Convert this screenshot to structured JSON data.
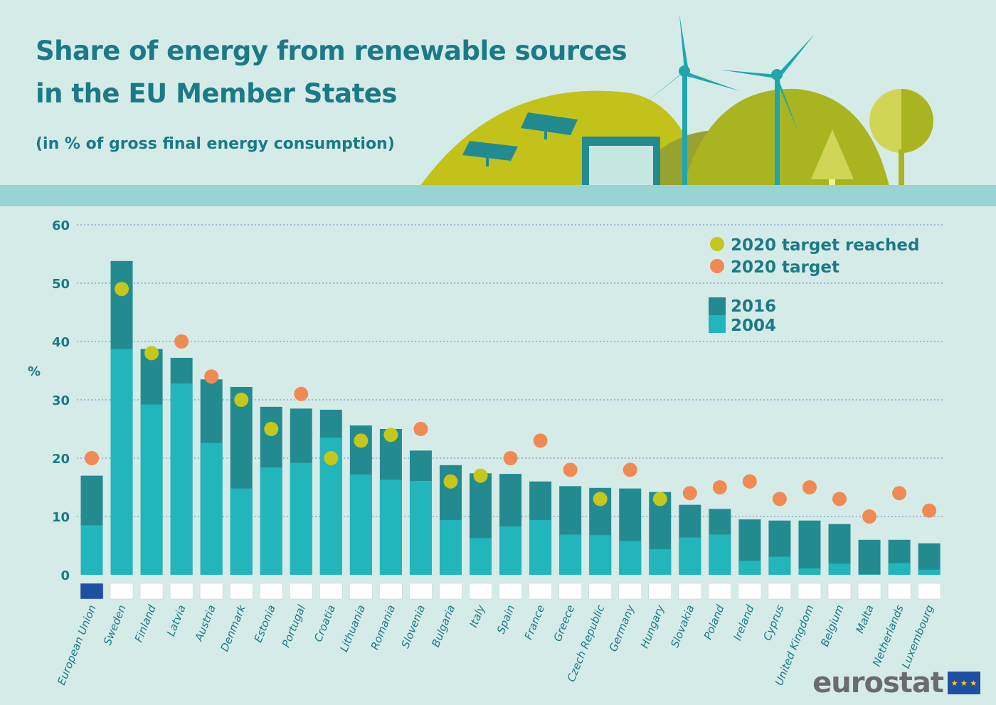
{
  "header": {
    "title_line1": "Share of energy from renewable sources",
    "title_line2": "in the EU Member States",
    "subtitle": "(in % of gross final energy consumption)"
  },
  "logo": "eurostat",
  "colors": {
    "background": "#d5ebe8",
    "bar_2016": "#238b90",
    "bar_2004": "#22b5bc",
    "target_reached": "#c5c71a",
    "target": "#f08a52",
    "text": "#1b7a85"
  },
  "chart_data": {
    "type": "bar",
    "ylabel": "%",
    "ylim": [
      0,
      60
    ],
    "yticks": [
      0,
      10,
      20,
      30,
      40,
      50,
      60
    ],
    "grid": true,
    "legend_position": "top-right",
    "legend": {
      "target_reached": "2020 target reached",
      "target": "2020 target",
      "s2016": "2016",
      "s2004": "2004"
    },
    "categories": [
      "European Union",
      "Sweden",
      "Finland",
      "Latvia",
      "Austria",
      "Denmark",
      "Estonia",
      "Portugal",
      "Croatia",
      "Lithuania",
      "Romania",
      "Slovenia",
      "Bulgaria",
      "Italy",
      "Spain",
      "France",
      "Greece",
      "Czech Republic",
      "Germany",
      "Hungary",
      "Slovakia",
      "Poland",
      "Ireland",
      "Cyprus",
      "United Kingdom",
      "Belgium",
      "Malta",
      "Netherlands",
      "Luxembourg"
    ],
    "series": [
      {
        "name": "2016",
        "values": [
          17.0,
          53.8,
          38.7,
          37.2,
          33.5,
          32.2,
          28.8,
          28.5,
          28.3,
          25.6,
          25.0,
          21.3,
          18.8,
          17.4,
          17.3,
          16.0,
          15.2,
          14.9,
          14.8,
          14.2,
          12.0,
          11.3,
          9.5,
          9.3,
          9.3,
          8.7,
          6.0,
          6.0,
          5.4
        ]
      },
      {
        "name": "2004",
        "values": [
          8.5,
          38.7,
          29.2,
          32.8,
          22.6,
          14.8,
          18.4,
          19.2,
          23.5,
          17.2,
          16.3,
          16.1,
          9.4,
          6.3,
          8.3,
          9.4,
          6.9,
          6.8,
          5.8,
          4.4,
          6.4,
          6.9,
          2.4,
          3.1,
          1.1,
          1.9,
          0.1,
          2.0,
          0.9
        ]
      }
    ],
    "targets_2020": [
      20,
      49,
      38,
      40,
      34,
      30,
      25,
      31,
      20,
      23,
      24,
      25,
      16,
      17,
      20,
      23,
      18,
      13,
      18,
      13,
      14,
      15,
      16,
      13,
      15,
      13,
      10,
      14,
      11
    ],
    "target_reached": [
      false,
      true,
      true,
      false,
      false,
      true,
      true,
      false,
      true,
      true,
      true,
      false,
      true,
      true,
      false,
      false,
      false,
      true,
      false,
      true,
      false,
      false,
      false,
      false,
      false,
      false,
      false,
      false,
      false
    ]
  }
}
